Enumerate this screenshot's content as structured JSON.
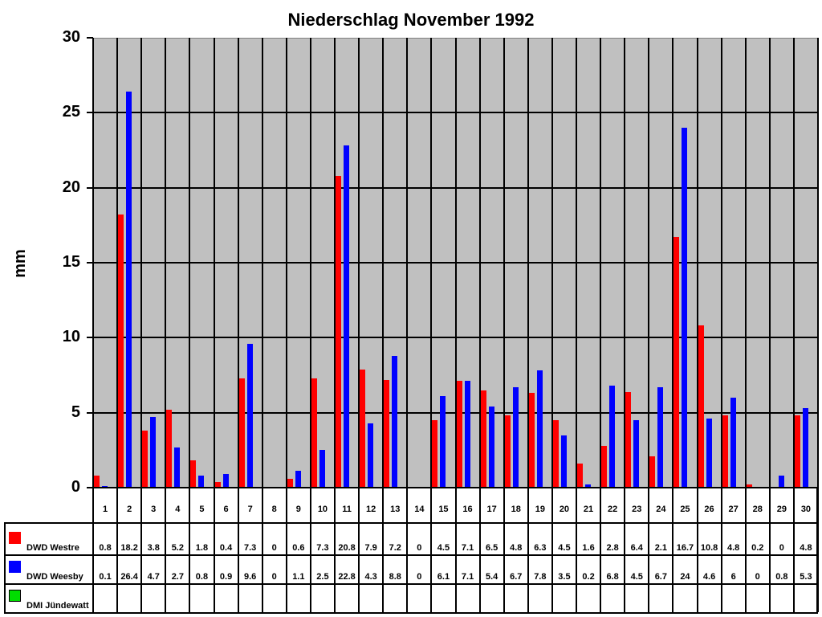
{
  "chart_data": {
    "type": "bar",
    "title": "Niederschlag November 1992",
    "xlabel": "",
    "ylabel": "mm",
    "ylim": [
      0,
      30
    ],
    "yticks": [
      0,
      5,
      10,
      15,
      20,
      25,
      30
    ],
    "grid": true,
    "legend_position": "data-table-bottom",
    "categories": [
      "1",
      "2",
      "3",
      "4",
      "5",
      "6",
      "7",
      "8",
      "9",
      "10",
      "11",
      "12",
      "13",
      "14",
      "15",
      "16",
      "17",
      "18",
      "19",
      "20",
      "21",
      "22",
      "23",
      "24",
      "25",
      "26",
      "27",
      "28",
      "29",
      "30"
    ],
    "series": [
      {
        "name": "DWD Westre",
        "color": "#ff0000",
        "values": [
          0.8,
          18.2,
          3.8,
          5.2,
          1.8,
          0.4,
          7.3,
          0,
          0.6,
          7.3,
          20.8,
          7.9,
          7.2,
          0,
          4.5,
          7.1,
          6.5,
          4.8,
          6.3,
          4.5,
          1.6,
          2.8,
          6.4,
          2.1,
          16.7,
          10.8,
          4.8,
          0.2,
          0,
          4.8
        ]
      },
      {
        "name": "DWD Weesby",
        "color": "#0000ff",
        "values": [
          0.1,
          26.4,
          4.7,
          2.7,
          0.8,
          0.9,
          9.6,
          0,
          1.1,
          2.5,
          22.8,
          4.3,
          8.8,
          0,
          6.1,
          7.1,
          5.4,
          6.7,
          7.8,
          3.5,
          0.2,
          6.8,
          4.5,
          6.7,
          24,
          4.6,
          6,
          0,
          0.8,
          5.3
        ]
      },
      {
        "name": "DMI Jündewatt",
        "color": "#00dd00",
        "values": [
          null,
          null,
          null,
          null,
          null,
          null,
          null,
          null,
          null,
          null,
          null,
          null,
          null,
          null,
          null,
          null,
          null,
          null,
          null,
          null,
          null,
          null,
          null,
          null,
          null,
          null,
          null,
          null,
          null,
          null
        ]
      }
    ]
  },
  "colors": {
    "plot_background": "#c0c0c0",
    "gridline": "#000000"
  }
}
